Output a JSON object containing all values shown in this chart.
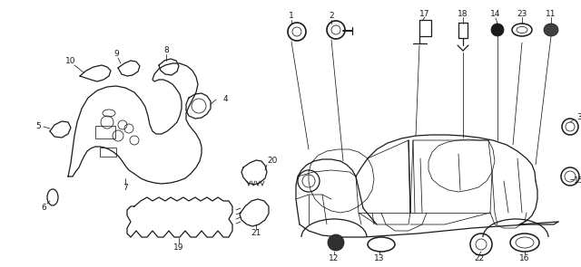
{
  "bg_color": "#ffffff",
  "line_color": "#1a1a1a",
  "fig_width": 6.4,
  "fig_height": 2.95,
  "dpi": 100,
  "label_fontsize": 6.5,
  "lw_main": 0.9,
  "lw_thin": 0.55,
  "lw_leader": 0.55
}
